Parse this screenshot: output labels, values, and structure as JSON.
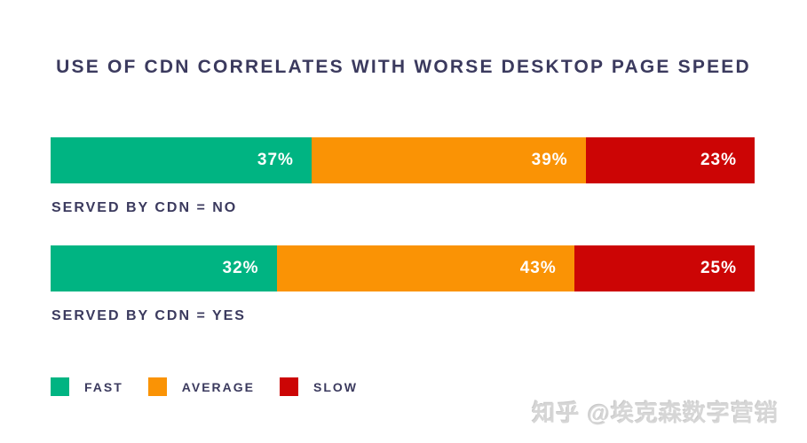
{
  "title": "USE OF CDN CORRELATES WITH WORSE DESKTOP PAGE SPEED",
  "colors": {
    "fast": "#00b482",
    "average": "#fa9305",
    "slow": "#cc0505",
    "title_text": "#3b3a5e",
    "value_label_text": "#ffffff",
    "background": "#ffffff",
    "watermark_text": "#d6d6d6"
  },
  "chart_data": {
    "type": "bar",
    "orientation": "horizontal",
    "stacked": true,
    "unit": "%",
    "title": "USE OF CDN CORRELATES WITH WORSE DESKTOP PAGE SPEED",
    "categories": [
      "SERVED BY CDN = NO",
      "SERVED BY CDN = YES"
    ],
    "series": [
      {
        "name": "FAST",
        "color": "#00b482",
        "values": [
          37,
          32
        ]
      },
      {
        "name": "AVERAGE",
        "color": "#fa9305",
        "values": [
          39,
          43
        ]
      },
      {
        "name": "SLOW",
        "color": "#cc0505",
        "values": [
          23,
          25
        ]
      }
    ],
    "value_labels": "inside-end",
    "legend_position": "bottom-left",
    "axes": "none",
    "grid": false
  },
  "rows": [
    {
      "label": "SERVED BY CDN = NO",
      "segments": [
        {
          "series": "FAST",
          "value": 37,
          "display": "37%"
        },
        {
          "series": "AVERAGE",
          "value": 39,
          "display": "39%"
        },
        {
          "series": "SLOW",
          "value": 23,
          "display": "23%"
        }
      ]
    },
    {
      "label": "SERVED BY CDN = YES",
      "segments": [
        {
          "series": "FAST",
          "value": 32,
          "display": "32%"
        },
        {
          "series": "AVERAGE",
          "value": 43,
          "display": "43%"
        },
        {
          "series": "SLOW",
          "value": 25,
          "display": "25%"
        }
      ]
    }
  ],
  "legend": [
    {
      "label": "FAST",
      "color": "#00b482"
    },
    {
      "label": "AVERAGE",
      "color": "#fa9305"
    },
    {
      "label": "SLOW",
      "color": "#cc0505"
    }
  ],
  "watermark": "知乎 @埃克森数字营销"
}
